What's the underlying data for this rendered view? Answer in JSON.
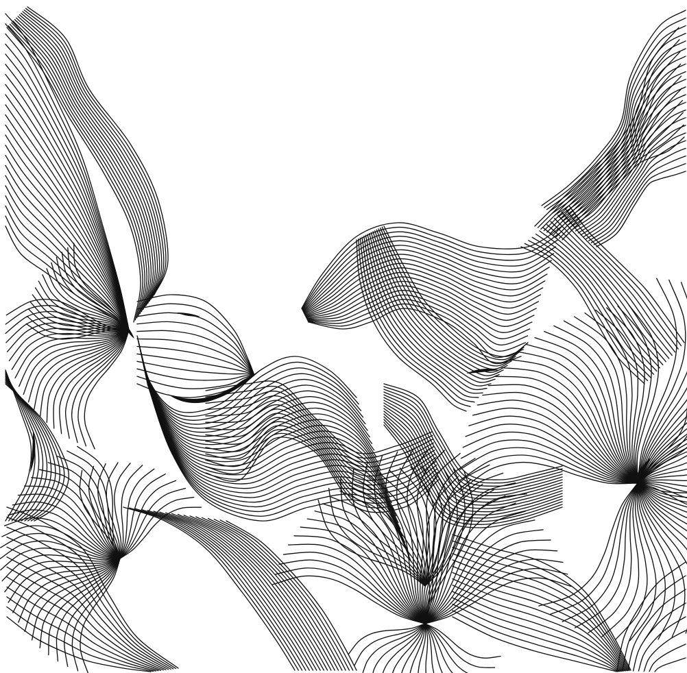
{
  "artwork": {
    "subject": "abstract-flowing-line-pattern",
    "style": "black-ink-line-art",
    "colors": {
      "ink": "#111111",
      "background": "#ffffff"
    },
    "has_visible_text": false
  }
}
